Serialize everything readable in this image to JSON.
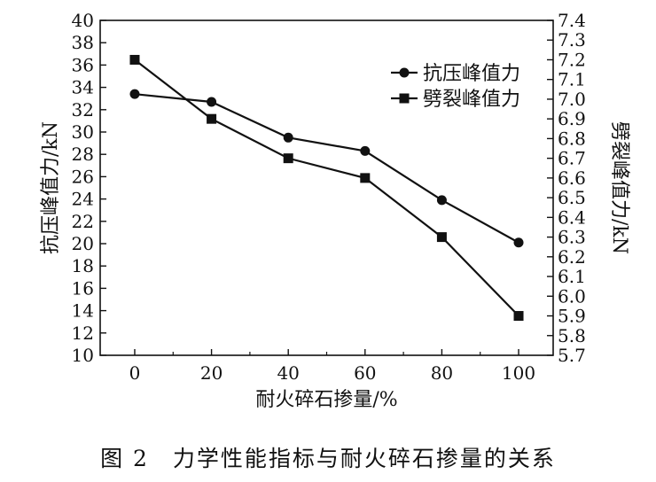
{
  "chart_data": {
    "type": "line",
    "x": [
      0,
      20,
      40,
      60,
      80,
      100
    ],
    "xlabel": "耐火碎石掺量/%",
    "xticks": [
      "0",
      "20",
      "40",
      "60",
      "80",
      "100"
    ],
    "xlim": [
      -9,
      109
    ],
    "ylabel_left": "抗压峰值力/kN",
    "ylabel_right": "劈裂峰值力/kN",
    "ylim_left": [
      10,
      40
    ],
    "ylim_right": [
      5.7,
      7.4
    ],
    "yticks_left": [
      "10",
      "12",
      "14",
      "16",
      "18",
      "20",
      "22",
      "24",
      "26",
      "28",
      "30",
      "32",
      "34",
      "36",
      "38",
      "40"
    ],
    "yticks_right": [
      "5.7",
      "5.8",
      "5.9",
      "6.0",
      "6.1",
      "6.2",
      "6.3",
      "6.4",
      "6.5",
      "6.6",
      "6.7",
      "6.8",
      "6.9",
      "7.0",
      "7.1",
      "7.2",
      "7.3",
      "7.4"
    ],
    "series": [
      {
        "name": "抗压峰值力",
        "axis": "left",
        "marker": "circle",
        "values": [
          33.4,
          32.7,
          29.5,
          28.3,
          23.9,
          20.1
        ]
      },
      {
        "name": "劈裂峰值力",
        "axis": "right",
        "marker": "square",
        "values": [
          7.2,
          6.9,
          6.7,
          6.6,
          6.3,
          5.9
        ]
      }
    ],
    "legend_position": "top-right",
    "grid": false
  },
  "caption": "图 2　力学性能指标与耐火碎石掺量的关系"
}
